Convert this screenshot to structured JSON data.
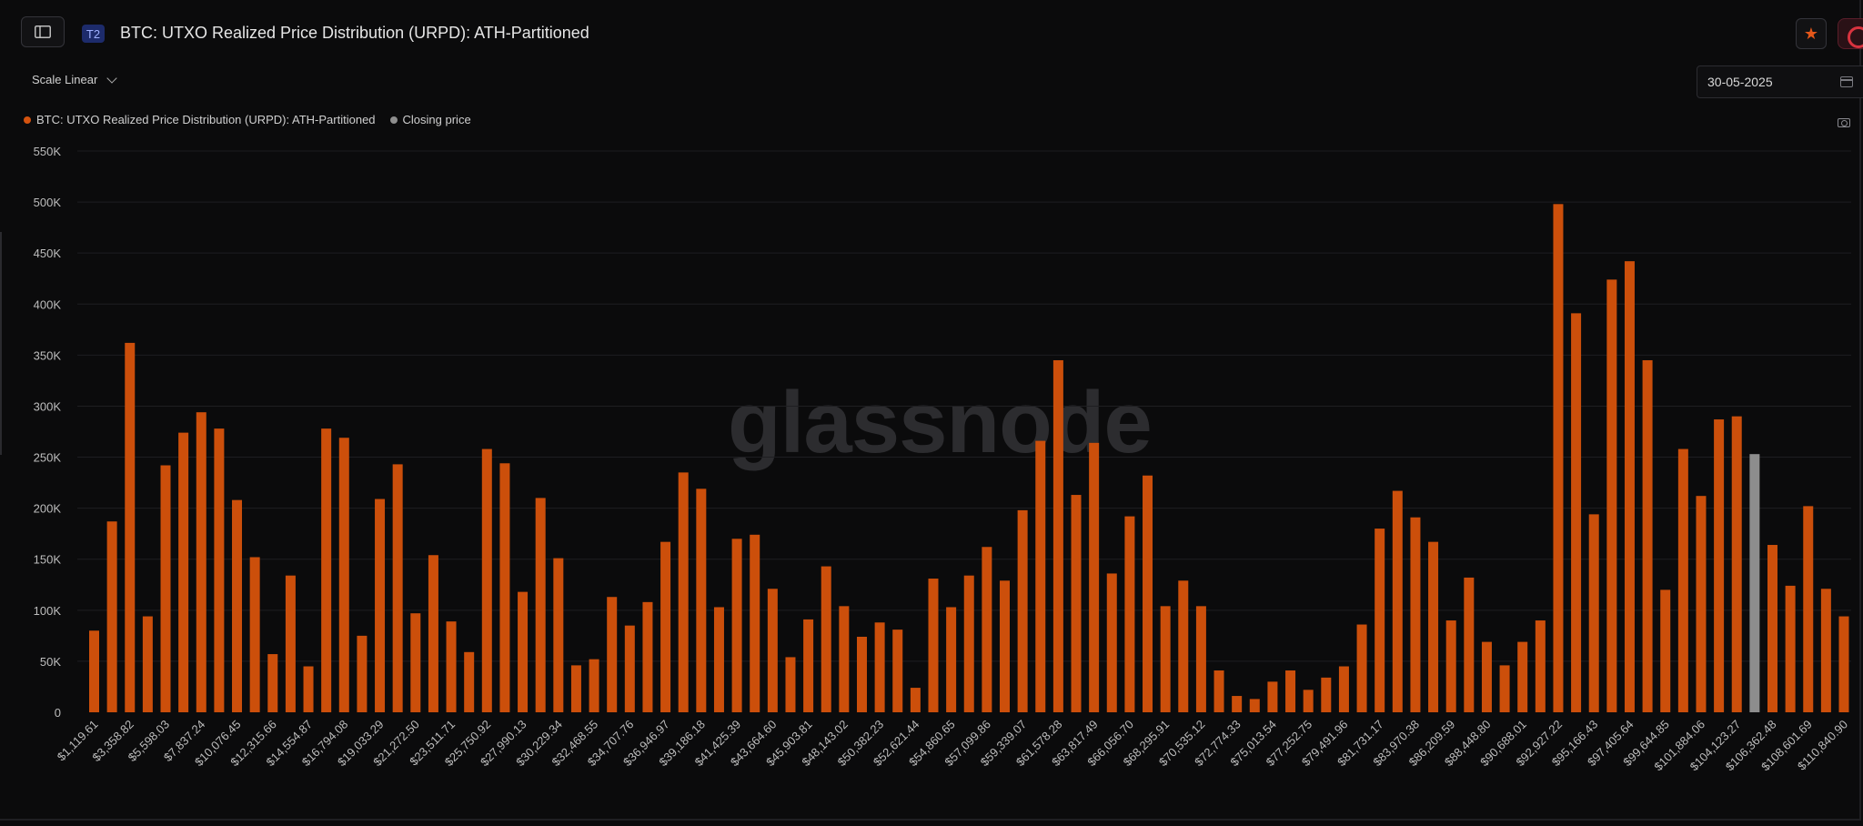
{
  "header": {
    "tier_badge": "T2",
    "title": "BTC: UTXO Realized Price Distribution (URPD): ATH-Partitioned"
  },
  "toolbar": {
    "scale_label": "Scale Linear",
    "date_value": "30-05-2025"
  },
  "legend": {
    "items": [
      {
        "label": "BTC: UTXO Realized Price Distribution (URPD): ATH-Partitioned",
        "color": "#d4530f"
      },
      {
        "label": "Closing price",
        "color": "#8e8e8e"
      }
    ]
  },
  "watermark": "glassnode",
  "colors": {
    "bar": "#cc4f0b",
    "highlight_bar": "#8d8d8d",
    "grid": "#1e1e21",
    "axis_text": "#bdbdbd"
  },
  "chart_data": {
    "type": "bar",
    "ylim": [
      0,
      550000
    ],
    "yticks": [
      0,
      50000,
      100000,
      150000,
      200000,
      250000,
      300000,
      350000,
      400000,
      450000,
      500000,
      550000
    ],
    "ytick_labels": [
      "0",
      "50K",
      "100K",
      "150K",
      "200K",
      "250K",
      "300K",
      "350K",
      "400K",
      "450K",
      "500K",
      "550K"
    ],
    "xtick_labels": [
      "$1,119.61",
      "$3,358.82",
      "$5,598.03",
      "$7,837.24",
      "$10,076.45",
      "$12,315.66",
      "$14,554.87",
      "$16,794.08",
      "$19,033.29",
      "$21,272.50",
      "$23,511.71",
      "$25,750.92",
      "$27,990.13",
      "$30,229.34",
      "$32,468.55",
      "$34,707.76",
      "$36,946.97",
      "$39,186.18",
      "$41,425.39",
      "$43,664.60",
      "$45,903.81",
      "$48,143.02",
      "$50,382.23",
      "$52,621.44",
      "$54,860.65",
      "$57,099.86",
      "$59,339.07",
      "$61,578.28",
      "$63,817.49",
      "$66,056.70",
      "$68,295.91",
      "$70,535.12",
      "$72,774.33",
      "$75,013.54",
      "$77,252.75",
      "$79,491.96",
      "$81,731.17",
      "$83,970.38",
      "$86,209.59",
      "$88,448.80",
      "$90,688.01",
      "$92,927.22",
      "$95,166.43",
      "$97,405.64",
      "$99,644.85",
      "$101,884.06",
      "$104,123.27",
      "$106,362.48",
      "$108,601.69",
      "$110,840.90"
    ],
    "highlight_index": 93,
    "values": [
      80000,
      187000,
      362000,
      94000,
      242000,
      274000,
      294000,
      278000,
      208000,
      152000,
      57000,
      134000,
      45000,
      278000,
      269000,
      75000,
      209000,
      243000,
      97000,
      154000,
      89000,
      59000,
      258000,
      244000,
      118000,
      210000,
      151000,
      46000,
      52000,
      113000,
      85000,
      108000,
      167000,
      235000,
      219000,
      103000,
      170000,
      174000,
      121000,
      54000,
      91000,
      143000,
      104000,
      74000,
      88000,
      81000,
      24000,
      131000,
      103000,
      134000,
      162000,
      129000,
      198000,
      266000,
      345000,
      213000,
      264000,
      136000,
      192000,
      232000,
      104000,
      129000,
      104000,
      41000,
      16000,
      13000,
      30000,
      41000,
      22000,
      34000,
      45000,
      86000,
      180000,
      217000,
      191000,
      167000,
      90000,
      132000,
      69000,
      46000,
      69000,
      90000,
      498000,
      391000,
      194000,
      424000,
      442000,
      345000,
      120000,
      258000,
      212000,
      287000,
      290000,
      253000,
      164000,
      124000,
      202000,
      121000,
      94000
    ]
  }
}
